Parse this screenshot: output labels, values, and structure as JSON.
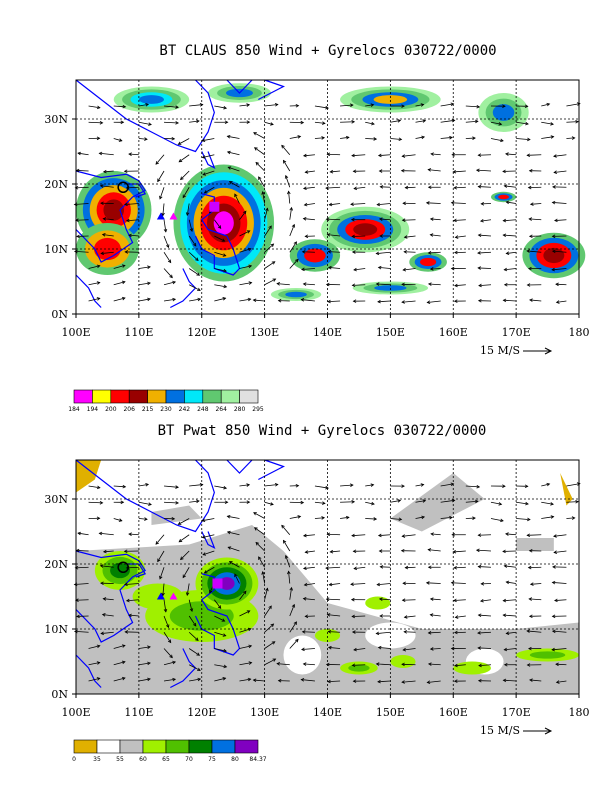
{
  "chart_data": [
    {
      "type": "heatmap",
      "title": "BT CLAUS 850 Wind + Gyrelocs 030722/0000",
      "x_ticks": [
        "100E",
        "110E",
        "120E",
        "130E",
        "140E",
        "150E",
        "160E",
        "170E",
        "180"
      ],
      "y_ticks": [
        "0N",
        "10N",
        "20N",
        "30N"
      ],
      "xlim": [
        100,
        180
      ],
      "ylim": [
        0,
        36
      ],
      "grid": true,
      "ref_vector_label": "15 M/S",
      "colorbar": {
        "ticks": [
          "184",
          "194",
          "200",
          "206",
          "215",
          "230",
          "242",
          "248",
          "264",
          "280",
          "295"
        ],
        "colors": [
          "#ff00ff",
          "#ffff00",
          "#ff0000",
          "#990000",
          "#f0b000",
          "#0070e0",
          "#00e8f8",
          "#60c870",
          "#a0f0a0",
          "#e0e0e0"
        ]
      },
      "gyre_markers": [
        {
          "lon": 115.5,
          "lat": 15,
          "color": "#ff00ff",
          "shape": "triangle"
        },
        {
          "lon": 113.5,
          "lat": 15,
          "color": "#0000ff",
          "shape": "triangle"
        },
        {
          "lon": 107.5,
          "lat": 19.5,
          "color": "#000000",
          "shape": "circle"
        },
        {
          "lon": 122,
          "lat": 16.5,
          "color": "#cc00ff",
          "shape": "square"
        }
      ]
    },
    {
      "type": "heatmap",
      "title": "BT Pwat 850 Wind + Gyrelocs 030722/0000",
      "x_ticks": [
        "100E",
        "110E",
        "120E",
        "130E",
        "140E",
        "150E",
        "160E",
        "170E",
        "180"
      ],
      "y_ticks": [
        "0N",
        "10N",
        "20N",
        "30N"
      ],
      "xlim": [
        100,
        180
      ],
      "ylim": [
        0,
        36
      ],
      "grid": true,
      "ref_vector_label": "15 M/S",
      "colorbar": {
        "ticks": [
          "0",
          "35",
          "55",
          "60",
          "65",
          "70",
          "75",
          "80",
          "84.37"
        ],
        "colors": [
          "#e0b000",
          "#ffffff",
          "#c0c0c0",
          "#a0f000",
          "#50c000",
          "#008000",
          "#0070e0",
          "#8000c0"
        ]
      },
      "gyre_markers": [
        {
          "lon": 115.5,
          "lat": 15,
          "color": "#ff00ff",
          "shape": "triangle"
        },
        {
          "lon": 113.5,
          "lat": 15,
          "color": "#0000ff",
          "shape": "triangle"
        },
        {
          "lon": 107.5,
          "lat": 19.5,
          "color": "#000000",
          "shape": "circle"
        },
        {
          "lon": 122.5,
          "lat": 17,
          "color": "#cc00ff",
          "shape": "square"
        }
      ]
    }
  ]
}
